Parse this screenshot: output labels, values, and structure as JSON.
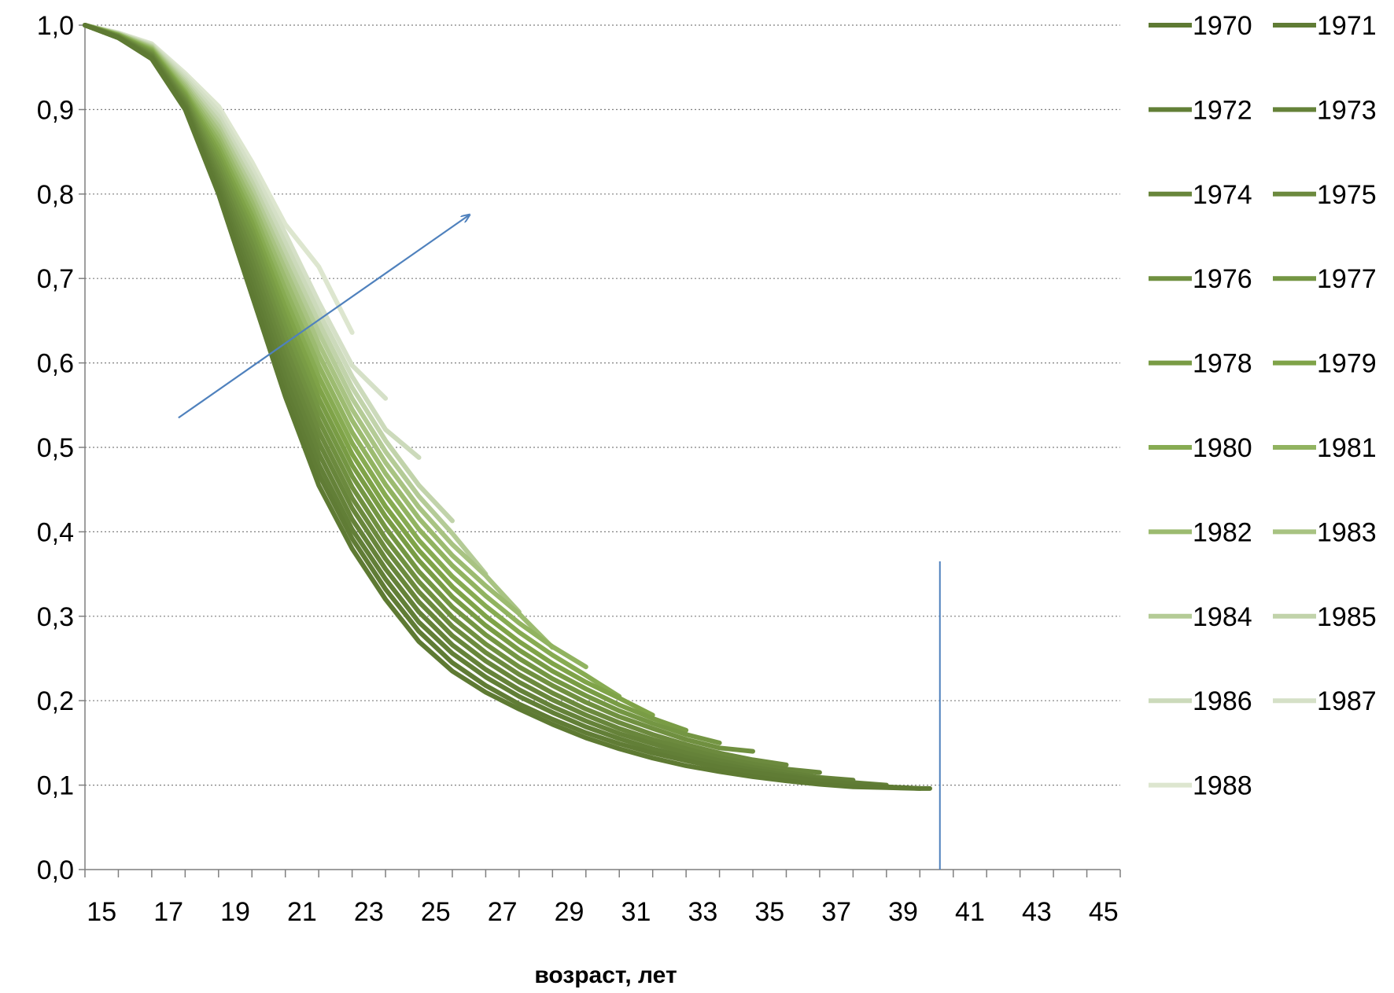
{
  "chart_data": {
    "type": "line",
    "title": "",
    "xlabel": "возраст, лет",
    "ylabel": "",
    "xlim": [
      15,
      46
    ],
    "ylim": [
      0,
      1
    ],
    "x_ticks": [
      "15",
      "17",
      "19",
      "21",
      "23",
      "25",
      "27",
      "29",
      "31",
      "33",
      "35",
      "37",
      "39",
      "41",
      "43",
      "45"
    ],
    "y_ticks": [
      "0,0",
      "0,1",
      "0,2",
      "0,3",
      "0,4",
      "0,5",
      "0,6",
      "0,7",
      "0,8",
      "0,9",
      "1,0"
    ],
    "grid": "horizontal-dotted",
    "legend_position": "right",
    "colors": {
      "darkest": "#5e7a33",
      "mid": "#8cb34a",
      "lightest": "#dde6cf",
      "annotation": "#4f81bd"
    },
    "annotations": [
      {
        "type": "arrow",
        "from": [
          17.8,
          0.535
        ],
        "to": [
          26.5,
          0.775
        ]
      },
      {
        "type": "vertical-line",
        "x": 40.6,
        "y_from": 0,
        "y_to": 0.365
      }
    ],
    "series": [
      {
        "name": "1970",
        "color": "#5e7a33",
        "x": [
          15,
          16,
          17,
          18,
          19,
          20,
          21,
          22,
          23,
          24,
          25,
          26,
          27,
          28,
          29,
          30,
          31,
          32,
          33,
          34,
          35,
          36,
          37,
          38,
          39,
          40,
          40.3
        ],
        "y": [
          1.0,
          0.985,
          0.96,
          0.9,
          0.8,
          0.68,
          0.56,
          0.455,
          0.38,
          0.32,
          0.27,
          0.235,
          0.21,
          0.19,
          0.172,
          0.156,
          0.143,
          0.132,
          0.123,
          0.116,
          0.11,
          0.105,
          0.101,
          0.098,
          0.097,
          0.096,
          0.096
        ]
      },
      {
        "name": "1971",
        "color": "#607c35",
        "x": [
          15,
          16,
          17,
          18,
          19,
          20,
          21,
          22,
          23,
          24,
          25,
          26,
          27,
          28,
          29,
          30,
          31,
          32,
          33,
          34,
          35,
          36,
          37,
          38,
          39,
          40
        ],
        "y": [
          1.0,
          0.985,
          0.961,
          0.902,
          0.805,
          0.69,
          0.57,
          0.468,
          0.392,
          0.332,
          0.282,
          0.245,
          0.218,
          0.196,
          0.178,
          0.162,
          0.149,
          0.138,
          0.129,
          0.121,
          0.115,
          0.11,
          0.105,
          0.101,
          0.098,
          0.096
        ]
      },
      {
        "name": "1972",
        "color": "#627f37",
        "x": [
          15,
          16,
          17,
          18,
          19,
          20,
          21,
          22,
          23,
          24,
          25,
          26,
          27,
          28,
          29,
          30,
          31,
          32,
          33,
          34,
          35,
          36,
          37,
          38,
          39
        ],
        "y": [
          1.0,
          0.985,
          0.962,
          0.904,
          0.81,
          0.7,
          0.582,
          0.48,
          0.403,
          0.344,
          0.293,
          0.256,
          0.228,
          0.205,
          0.186,
          0.169,
          0.155,
          0.143,
          0.133,
          0.125,
          0.118,
          0.112,
          0.107,
          0.103,
          0.1
        ]
      },
      {
        "name": "1973",
        "color": "#658239",
        "x": [
          15,
          16,
          17,
          18,
          19,
          20,
          21,
          22,
          23,
          24,
          25,
          26,
          27,
          28,
          29,
          30,
          31,
          32,
          33,
          34,
          35,
          36,
          37,
          38
        ],
        "y": [
          1.0,
          0.986,
          0.963,
          0.906,
          0.815,
          0.71,
          0.594,
          0.493,
          0.415,
          0.356,
          0.305,
          0.266,
          0.237,
          0.213,
          0.193,
          0.176,
          0.161,
          0.149,
          0.138,
          0.129,
          0.121,
          0.115,
          0.109,
          0.106
        ]
      },
      {
        "name": "1974",
        "color": "#68863b",
        "x": [
          15,
          16,
          17,
          18,
          19,
          20,
          21,
          22,
          23,
          24,
          25,
          26,
          27,
          28,
          29,
          30,
          31,
          32,
          33,
          34,
          35,
          36,
          37
        ],
        "y": [
          1.0,
          0.986,
          0.964,
          0.908,
          0.82,
          0.72,
          0.606,
          0.506,
          0.428,
          0.368,
          0.317,
          0.277,
          0.247,
          0.222,
          0.201,
          0.183,
          0.167,
          0.154,
          0.143,
          0.133,
          0.125,
          0.119,
          0.115
        ]
      },
      {
        "name": "1975",
        "color": "#6c8a3e",
        "x": [
          15,
          16,
          17,
          18,
          19,
          20,
          21,
          22,
          23,
          24,
          25,
          26,
          27,
          28,
          29,
          30,
          31,
          32,
          33,
          34,
          35,
          36
        ],
        "y": [
          1.0,
          0.986,
          0.965,
          0.91,
          0.826,
          0.73,
          0.618,
          0.519,
          0.44,
          0.38,
          0.329,
          0.288,
          0.257,
          0.231,
          0.209,
          0.19,
          0.174,
          0.16,
          0.148,
          0.138,
          0.13,
          0.124
        ]
      },
      {
        "name": "1976",
        "color": "#709040",
        "x": [
          15,
          16,
          17,
          18,
          19,
          20,
          21,
          22,
          23,
          24,
          25,
          26,
          27,
          28,
          29,
          30,
          31,
          32,
          33,
          34,
          35
        ],
        "y": [
          1.0,
          0.987,
          0.966,
          0.912,
          0.832,
          0.74,
          0.63,
          0.532,
          0.453,
          0.392,
          0.341,
          0.299,
          0.267,
          0.24,
          0.218,
          0.198,
          0.181,
          0.167,
          0.154,
          0.144,
          0.14
        ]
      },
      {
        "name": "1977",
        "color": "#749643",
        "x": [
          15,
          16,
          17,
          18,
          19,
          20,
          21,
          22,
          23,
          24,
          25,
          26,
          27,
          28,
          29,
          30,
          31,
          32,
          33,
          34
        ],
        "y": [
          1.0,
          0.987,
          0.967,
          0.914,
          0.838,
          0.75,
          0.642,
          0.545,
          0.466,
          0.405,
          0.353,
          0.311,
          0.278,
          0.25,
          0.226,
          0.206,
          0.188,
          0.173,
          0.16,
          0.15
        ]
      },
      {
        "name": "1978",
        "color": "#799c45",
        "x": [
          15,
          16,
          17,
          18,
          19,
          20,
          21,
          22,
          23,
          24,
          25,
          26,
          27,
          28,
          29,
          30,
          31,
          32,
          33
        ],
        "y": [
          1.0,
          0.987,
          0.968,
          0.916,
          0.844,
          0.758,
          0.654,
          0.558,
          0.479,
          0.418,
          0.366,
          0.323,
          0.289,
          0.26,
          0.235,
          0.214,
          0.195,
          0.179,
          0.165
        ]
      },
      {
        "name": "1979",
        "color": "#7fa348",
        "x": [
          15,
          16,
          17,
          18,
          19,
          20,
          21,
          22,
          23,
          24,
          25,
          26,
          27,
          28,
          29,
          30,
          31,
          32
        ],
        "y": [
          1.0,
          0.988,
          0.969,
          0.918,
          0.85,
          0.766,
          0.665,
          0.571,
          0.492,
          0.43,
          0.378,
          0.335,
          0.3,
          0.27,
          0.244,
          0.222,
          0.203,
          0.183
        ]
      },
      {
        "name": "1980",
        "color": "#87ab52",
        "x": [
          15,
          16,
          17,
          18,
          19,
          20,
          21,
          22,
          23,
          24,
          25,
          26,
          27,
          28,
          29,
          30,
          31
        ],
        "y": [
          1.0,
          0.988,
          0.97,
          0.92,
          0.856,
          0.774,
          0.676,
          0.584,
          0.505,
          0.443,
          0.39,
          0.347,
          0.312,
          0.281,
          0.254,
          0.23,
          0.205
        ]
      },
      {
        "name": "1981",
        "color": "#91b360",
        "x": [
          15,
          16,
          17,
          18,
          19,
          20,
          21,
          22,
          23,
          24,
          25,
          26,
          27,
          28,
          29,
          30
        ],
        "y": [
          1.0,
          0.988,
          0.971,
          0.922,
          0.862,
          0.782,
          0.687,
          0.597,
          0.518,
          0.456,
          0.403,
          0.36,
          0.324,
          0.292,
          0.264,
          0.24
        ]
      },
      {
        "name": "1982",
        "color": "#9cbb70",
        "x": [
          15,
          16,
          17,
          18,
          19,
          20,
          21,
          22,
          23,
          24,
          25,
          26,
          27,
          28,
          29
        ],
        "y": [
          1.0,
          0.989,
          0.972,
          0.925,
          0.868,
          0.79,
          0.699,
          0.61,
          0.532,
          0.469,
          0.416,
          0.372,
          0.336,
          0.303,
          0.263
        ]
      },
      {
        "name": "1983",
        "color": "#a8c382",
        "x": [
          15,
          16,
          17,
          18,
          19,
          20,
          21,
          22,
          23,
          24,
          25,
          26,
          27,
          28
        ],
        "y": [
          1.0,
          0.989,
          0.973,
          0.928,
          0.874,
          0.798,
          0.71,
          0.623,
          0.545,
          0.482,
          0.429,
          0.385,
          0.348,
          0.305
        ]
      },
      {
        "name": "1984",
        "color": "#b4cb96",
        "x": [
          15,
          16,
          17,
          18,
          19,
          20,
          21,
          22,
          23,
          24,
          25,
          26,
          27
        ],
        "y": [
          1.0,
          0.989,
          0.974,
          0.931,
          0.88,
          0.806,
          0.72,
          0.636,
          0.558,
          0.495,
          0.442,
          0.398,
          0.35
        ]
      },
      {
        "name": "1985",
        "color": "#c1d3aa",
        "x": [
          15,
          16,
          17,
          18,
          19,
          20,
          21,
          22,
          23,
          24,
          25,
          26
        ],
        "y": [
          1.0,
          0.99,
          0.975,
          0.934,
          0.886,
          0.814,
          0.731,
          0.648,
          0.571,
          0.508,
          0.455,
          0.413
        ]
      },
      {
        "name": "1986",
        "color": "#ccdabb",
        "x": [
          15,
          16,
          17,
          18,
          19,
          20,
          21,
          22,
          23,
          24,
          25
        ],
        "y": [
          1.0,
          0.99,
          0.976,
          0.937,
          0.892,
          0.822,
          0.742,
          0.66,
          0.584,
          0.521,
          0.488
        ]
      },
      {
        "name": "1987",
        "color": "#d5e0c7",
        "x": [
          15,
          16,
          17,
          18,
          19,
          20,
          21,
          22,
          23,
          24
        ],
        "y": [
          1.0,
          0.99,
          0.977,
          0.94,
          0.898,
          0.83,
          0.753,
          0.672,
          0.597,
          0.558
        ]
      },
      {
        "name": "1988",
        "color": "#dde6cf",
        "x": [
          15,
          16,
          17,
          18,
          19,
          20,
          21,
          22,
          23
        ],
        "y": [
          1.0,
          0.991,
          0.978,
          0.943,
          0.904,
          0.838,
          0.764,
          0.714,
          0.636
        ]
      }
    ]
  }
}
